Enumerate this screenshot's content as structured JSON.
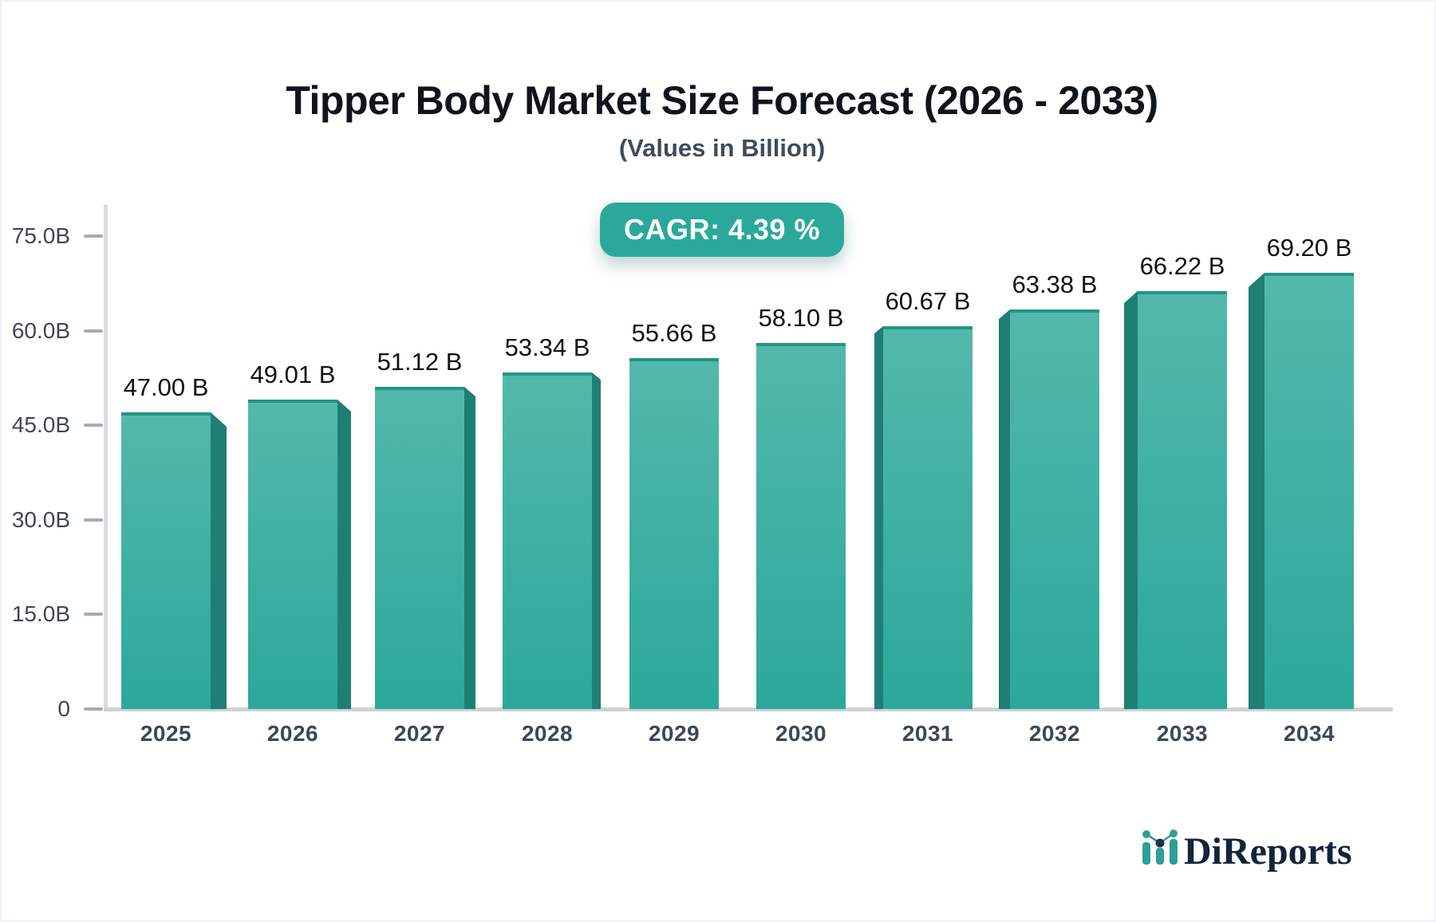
{
  "branding": {
    "logo_text": "DiReports"
  },
  "chart_data": {
    "type": "bar",
    "title": "Tipper Body Market Size Forecast (2026 - 2033)",
    "subtitle": "(Values in Billion)",
    "annotation": "CAGR: 4.39 %",
    "categories": [
      "2025",
      "2026",
      "2027",
      "2028",
      "2029",
      "2030",
      "2031",
      "2032",
      "2033",
      "2034"
    ],
    "values": [
      47.0,
      49.01,
      51.12,
      53.34,
      55.66,
      58.1,
      60.67,
      63.38,
      66.22,
      69.2
    ],
    "bar_labels": [
      "47.00 B",
      "49.01 B",
      "51.12 B",
      "53.34 B",
      "55.66 B",
      "58.10 B",
      "60.67 B",
      "63.38 B",
      "66.22 B",
      "69.20 B"
    ],
    "xlabel": "",
    "ylabel": "",
    "ylim": [
      0,
      75
    ],
    "yticks": {
      "values": [
        75,
        60,
        45,
        30,
        15,
        0
      ],
      "labels": [
        "75.0B",
        "60.0B",
        "45.0B",
        "30.0B",
        "15.0B",
        "0"
      ]
    },
    "grid": false,
    "legend": null,
    "bar_style": "3d-extruded, perspective toward center",
    "colors": {
      "bar_top": "#53b8ab",
      "bar_bottom": "#2ba89a",
      "bar_edge": "#249486",
      "bar_side": "#1f7f74",
      "badge_bg": "#2aa99b",
      "axis_line": "#d9dce2",
      "baseline": "#ced2d9",
      "tick_dash": "#a6acb6",
      "axis_text": "#3e4757",
      "value_text": "#121212",
      "title_text": "#0f141d",
      "subtitle_text": "#3f4b5c",
      "logo_navy": "#16233c",
      "logo_teal": "#2f9e95"
    }
  }
}
